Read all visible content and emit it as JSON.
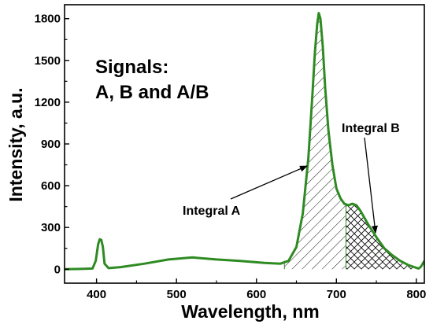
{
  "chart_data": {
    "type": "line",
    "title": "",
    "xlabel": "Wavelength, nm",
    "ylabel": "Intensity, a.u.",
    "xlim": [
      360,
      810
    ],
    "ylim": [
      -100,
      1900
    ],
    "x_ticks": [
      400,
      500,
      600,
      700,
      800
    ],
    "y_ticks": [
      0,
      300,
      600,
      900,
      1200,
      1500,
      1800
    ],
    "grid": false,
    "line_color": "#2e8b22",
    "annotations": {
      "signals_line1": "Signals:",
      "signals_line2": "A, B and A/B",
      "integral_a": "Integral A",
      "integral_b": "Integral B"
    },
    "integral_a_range": [
      635,
      712
    ],
    "integral_b_range": [
      712,
      800
    ],
    "series": [
      {
        "x": [
          360,
          380,
          395,
          399,
          402,
          404,
          406,
          408,
          410,
          415,
          430,
          460,
          490,
          520,
          550,
          580,
          610,
          630,
          640,
          650,
          658,
          665,
          670,
          673,
          676,
          678,
          680,
          683,
          686,
          690,
          695,
          700,
          705,
          710,
          715,
          720,
          725,
          730,
          740,
          750,
          760,
          770,
          780,
          790,
          800,
          803,
          806,
          810
        ],
        "y": [
          0,
          2,
          5,
          60,
          180,
          215,
          210,
          160,
          40,
          8,
          15,
          40,
          70,
          85,
          70,
          60,
          45,
          40,
          60,
          160,
          400,
          800,
          1250,
          1550,
          1760,
          1840,
          1800,
          1600,
          1300,
          1000,
          750,
          580,
          510,
          470,
          460,
          470,
          460,
          420,
          320,
          230,
          150,
          100,
          60,
          30,
          10,
          5,
          20,
          60
        ]
      }
    ]
  }
}
